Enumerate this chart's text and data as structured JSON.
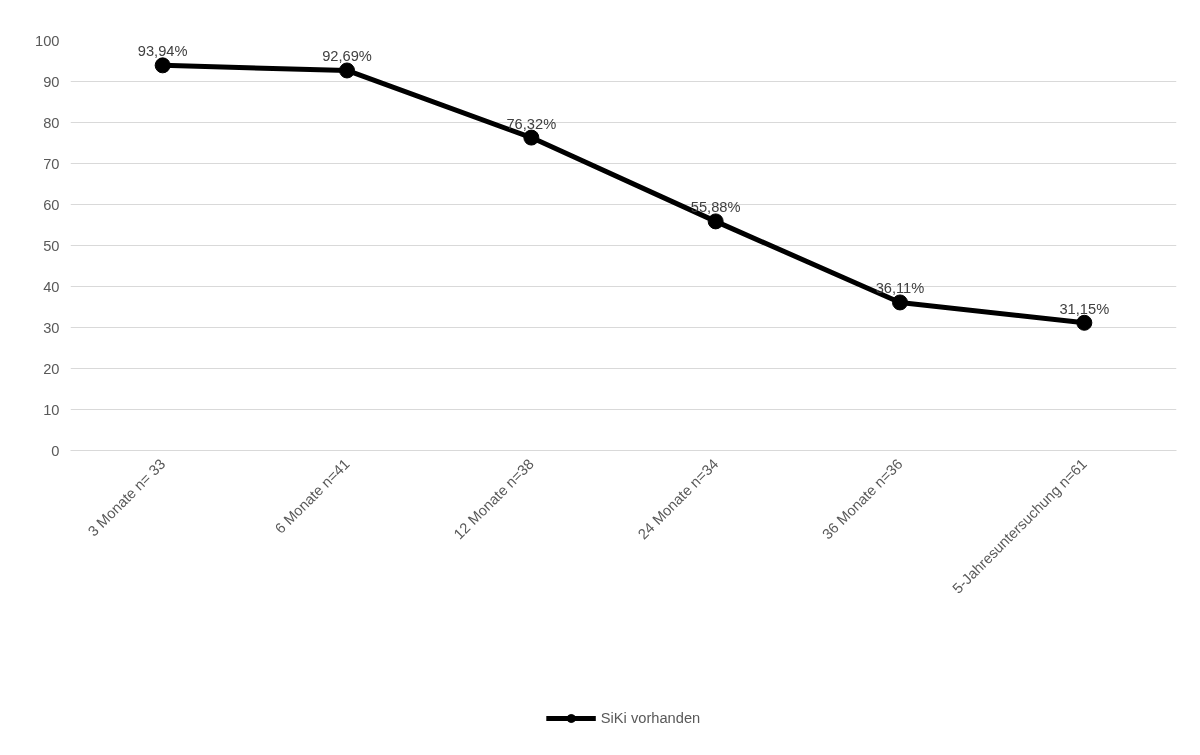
{
  "chart_data": {
    "type": "line",
    "categories": [
      "3 Monate n= 33",
      "6 Monate n=41",
      "12 Monate n=38",
      "24 Monate n=34",
      "36 Monate n=36",
      "5-Jahresuntersuchung n=61"
    ],
    "series": [
      {
        "name": "SiKi vorhanden",
        "color": "#000000",
        "values": [
          93.94,
          92.69,
          76.32,
          55.88,
          36.11,
          31.15
        ],
        "value_labels": [
          "93,94%",
          "92,69%",
          "76,32%",
          "55,88%",
          "36,11%",
          "31,15%"
        ]
      }
    ],
    "ylim": [
      0,
      100
    ],
    "yticks": [
      0,
      10,
      20,
      30,
      40,
      50,
      60,
      70,
      80,
      90,
      100
    ],
    "grid": "y",
    "legend": "bottom",
    "marker": "circle",
    "line_style": "solid"
  }
}
